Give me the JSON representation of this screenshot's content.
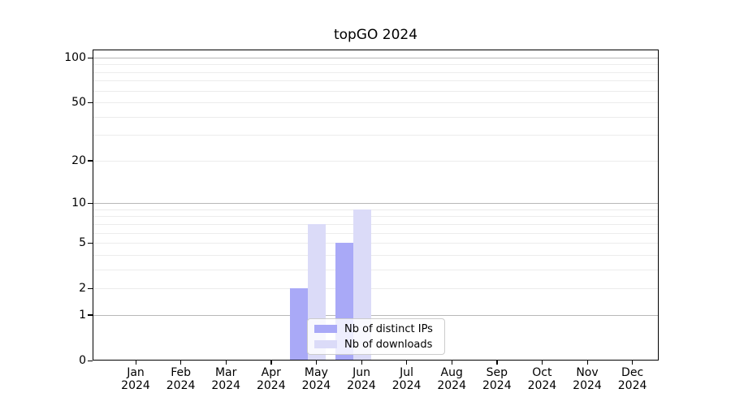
{
  "chart_data": {
    "type": "bar",
    "title": "topGO 2024",
    "x_categories": [
      "Jan",
      "Feb",
      "Mar",
      "Apr",
      "May",
      "Jun",
      "Jul",
      "Aug",
      "Sep",
      "Oct",
      "Nov",
      "Dec"
    ],
    "x_year": "2024",
    "series": [
      {
        "name": "Nb of distinct IPs",
        "color": "#a9a9f7",
        "values": [
          0,
          0,
          0,
          0,
          2,
          5,
          0,
          0,
          0,
          0,
          0,
          0
        ]
      },
      {
        "name": "Nb of downloads",
        "color": "#dbdbf8",
        "values": [
          0,
          0,
          0,
          0,
          7,
          9,
          0,
          0,
          0,
          0,
          0,
          0
        ]
      }
    ],
    "yscale": "log1p",
    "ylim": [
      0,
      113
    ],
    "ytick_values": [
      100,
      50,
      20,
      10,
      5,
      2,
      1,
      0
    ],
    "ytick_labels": [
      "100",
      "50",
      "20",
      "10",
      "5",
      "2",
      "1",
      "0"
    ],
    "minor_gridlines": [
      2,
      3,
      4,
      5,
      6,
      7,
      8,
      9,
      20,
      30,
      40,
      50,
      60,
      70,
      80,
      90
    ],
    "major_gridlines": [
      1,
      10,
      100
    ],
    "legend_position": "lower center inside",
    "grid": "horizontal only"
  }
}
